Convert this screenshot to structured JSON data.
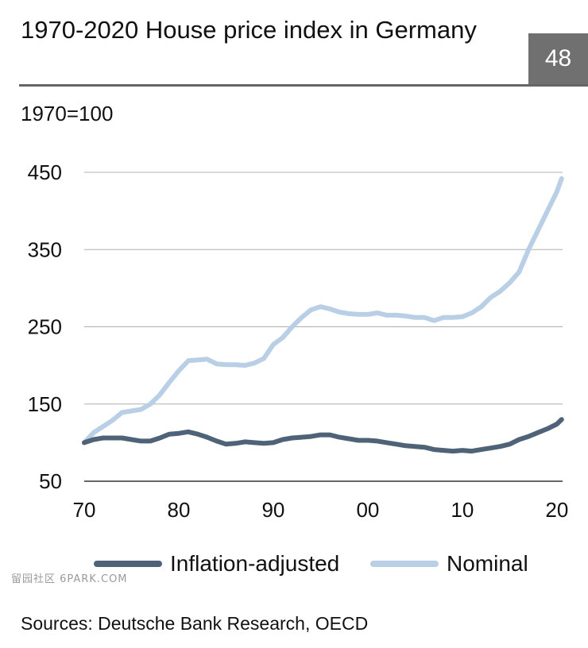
{
  "header": {
    "title": "1970-2020 House price index in Germany",
    "page_number": "48",
    "unit_label": "1970=100"
  },
  "footer": {
    "source": "Sources: Deutsche Bank Research, OECD",
    "watermark": "留园社区 6PARK.COM"
  },
  "colors": {
    "inflation_adjusted": "#4f6378",
    "nominal": "#b9cfe6",
    "grid": "#b0b0b0",
    "badge": "#707070"
  },
  "chart_data": {
    "type": "line",
    "xlabel": "",
    "ylabel": "",
    "xlim": [
      1970,
      2020.6
    ],
    "ylim": [
      50,
      450
    ],
    "yticks": [
      450,
      350,
      250,
      150,
      50
    ],
    "xtick_values": [
      1970,
      1980,
      1990,
      2000,
      2010,
      2020
    ],
    "xtick_labels": [
      "70",
      "80",
      "90",
      "00",
      "10",
      "20"
    ],
    "grid": "horizontal",
    "legend_position": "bottom",
    "series": [
      {
        "name": "Inflation-adjusted",
        "x": [
          1970,
          1971,
          1972,
          1973,
          1974,
          1975,
          1976,
          1977,
          1978,
          1979,
          1980,
          1981,
          1982,
          1983,
          1984,
          1985,
          1986,
          1987,
          1988,
          1989,
          1990,
          1991,
          1992,
          1993,
          1994,
          1995,
          1996,
          1997,
          1998,
          1999,
          2000,
          2001,
          2002,
          2003,
          2004,
          2005,
          2006,
          2007,
          2008,
          2009,
          2010,
          2011,
          2012,
          2013,
          2014,
          2015,
          2016,
          2017,
          2018,
          2019,
          2020,
          2020.5
        ],
        "y": [
          100,
          104,
          106,
          106,
          106,
          104,
          102,
          102,
          106,
          111,
          112,
          114,
          111,
          107,
          102,
          98,
          99,
          101,
          100,
          99,
          100,
          104,
          106,
          107,
          108,
          110,
          110,
          107,
          105,
          103,
          103,
          102,
          100,
          98,
          96,
          95,
          94,
          91,
          90,
          89,
          90,
          89,
          91,
          93,
          95,
          98,
          104,
          108,
          113,
          118,
          124,
          130
        ]
      },
      {
        "name": "Nominal",
        "x": [
          1970,
          1971,
          1972,
          1973,
          1974,
          1975,
          1976,
          1977,
          1978,
          1979,
          1980,
          1981,
          1982,
          1983,
          1984,
          1985,
          1986,
          1987,
          1988,
          1989,
          1990,
          1991,
          1992,
          1993,
          1994,
          1995,
          1996,
          1997,
          1998,
          1999,
          2000,
          2001,
          2002,
          2003,
          2004,
          2005,
          2006,
          2007,
          2008,
          2009,
          2010,
          2011,
          2012,
          2013,
          2014,
          2015,
          2016,
          2017,
          2018,
          2019,
          2020,
          2020.5
        ],
        "y": [
          100,
          113,
          121,
          129,
          139,
          141,
          143,
          150,
          162,
          178,
          193,
          206,
          207,
          208,
          202,
          201,
          201,
          200,
          203,
          209,
          227,
          236,
          250,
          262,
          272,
          276,
          273,
          269,
          267,
          266,
          266,
          268,
          265,
          265,
          264,
          262,
          262,
          258,
          262,
          262,
          263,
          268,
          276,
          288,
          296,
          307,
          321,
          350,
          375,
          400,
          425,
          442
        ]
      }
    ]
  }
}
